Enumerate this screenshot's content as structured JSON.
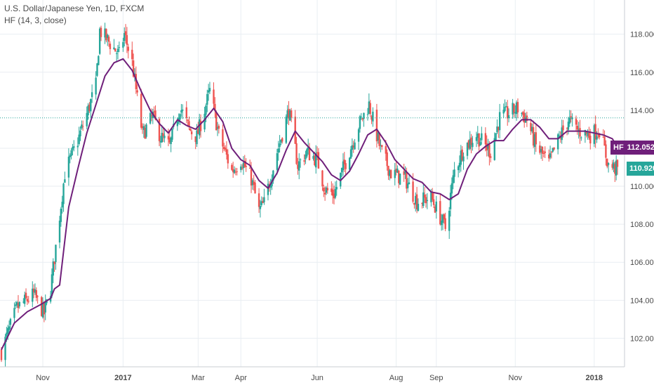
{
  "legend": {
    "symbol": "U.S. Dollar/Japanese Yen, 1D, FXCM",
    "indicator": "HF (14, 3, close)"
  },
  "colors": {
    "up": "#26a69a",
    "down": "#ef5350",
    "indicator": "#6f1f7a",
    "grid": "#e9eef2",
    "axis_text": "#4a4a4a",
    "price_line": "#26a69a",
    "price_tag_bg": "#26a69a",
    "hf_tag_bg": "#6f1f7a"
  },
  "price_tag": {
    "value": "110.920"
  },
  "hf_tag": {
    "label": "HF",
    "value": "112.052"
  },
  "chart_data": {
    "type": "candlestick",
    "title": "U.S. Dollar/Japanese Yen, 1D, FXCM",
    "xlabel": "",
    "ylabel": "",
    "ylim": [
      100.5,
      119.8
    ],
    "grid": true,
    "legend_placement": "top-left",
    "y_ticks": [
      "102.000",
      "104.000",
      "106.000",
      "108.000",
      "110.000",
      "112.000",
      "114.000",
      "116.000",
      "118.000"
    ],
    "x_ticks": [
      {
        "label": "Nov",
        "date": "2016-11-01",
        "bold": false
      },
      {
        "label": "2017",
        "date": "2017-01-02",
        "bold": true
      },
      {
        "label": "Mar",
        "date": "2017-03-01",
        "bold": false
      },
      {
        "label": "Apr",
        "date": "2017-04-03",
        "bold": false
      },
      {
        "label": "Jun",
        "date": "2017-06-01",
        "bold": false
      },
      {
        "label": "Aug",
        "date": "2017-08-01",
        "bold": false
      },
      {
        "label": "Sep",
        "date": "2017-09-01",
        "bold": false
      },
      {
        "label": "Nov",
        "date": "2017-11-01",
        "bold": false
      },
      {
        "label": "2018",
        "date": "2018-01-01",
        "bold": true
      }
    ],
    "date_range": [
      "2016-09-30",
      "2018-01-19"
    ],
    "close_path": [
      [
        "2016-09-30",
        101.3
      ],
      [
        "2016-10-12",
        103.6
      ],
      [
        "2016-10-25",
        104.3
      ],
      [
        "2016-11-02",
        103.3
      ],
      [
        "2016-11-07",
        104.6
      ],
      [
        "2016-11-11",
        106.8
      ],
      [
        "2016-11-18",
        110.7
      ],
      [
        "2016-11-28",
        112.4
      ],
      [
        "2016-12-05",
        113.8
      ],
      [
        "2016-12-12",
        115.3
      ],
      [
        "2016-12-15",
        118.2
      ],
      [
        "2016-12-22",
        117.6
      ],
      [
        "2016-12-30",
        116.9
      ],
      [
        "2017-01-03",
        118.0
      ],
      [
        "2017-01-09",
        116.5
      ],
      [
        "2017-01-17",
        112.7
      ],
      [
        "2017-01-25",
        113.7
      ],
      [
        "2017-01-31",
        112.6
      ],
      [
        "2017-02-07",
        112.1
      ],
      [
        "2017-02-15",
        114.2
      ],
      [
        "2017-02-22",
        113.0
      ],
      [
        "2017-02-28",
        112.6
      ],
      [
        "2017-03-10",
        115.0
      ],
      [
        "2017-03-17",
        112.7
      ],
      [
        "2017-03-27",
        110.8
      ],
      [
        "2017-04-03",
        111.4
      ],
      [
        "2017-04-11",
        110.4
      ],
      [
        "2017-04-17",
        108.7
      ],
      [
        "2017-04-21",
        109.1
      ],
      [
        "2017-05-01",
        111.8
      ],
      [
        "2017-05-10",
        114.0
      ],
      [
        "2017-05-17",
        111.1
      ],
      [
        "2017-05-24",
        111.8
      ],
      [
        "2017-06-01",
        111.4
      ],
      [
        "2017-06-07",
        109.8
      ],
      [
        "2017-06-14",
        109.6
      ],
      [
        "2017-06-23",
        111.3
      ],
      [
        "2017-07-03",
        113.2
      ],
      [
        "2017-07-11",
        114.3
      ],
      [
        "2017-07-20",
        111.9
      ],
      [
        "2017-07-28",
        110.7
      ],
      [
        "2017-08-08",
        110.4
      ],
      [
        "2017-08-17",
        109.2
      ],
      [
        "2017-08-28",
        109.4
      ],
      [
        "2017-09-08",
        107.8
      ],
      [
        "2017-09-15",
        110.8
      ],
      [
        "2017-09-22",
        112.0
      ],
      [
        "2017-10-02",
        112.7
      ],
      [
        "2017-10-13",
        111.8
      ],
      [
        "2017-10-20",
        113.6
      ],
      [
        "2017-11-03",
        114.1
      ],
      [
        "2017-11-10",
        113.5
      ],
      [
        "2017-11-17",
        112.1
      ],
      [
        "2017-11-27",
        111.2
      ],
      [
        "2017-12-04",
        112.4
      ],
      [
        "2017-12-12",
        113.5
      ],
      [
        "2017-12-20",
        112.9
      ],
      [
        "2017-12-29",
        112.7
      ],
      [
        "2018-01-05",
        113.0
      ],
      [
        "2018-01-12",
        111.1
      ],
      [
        "2018-01-19",
        110.9
      ]
    ],
    "series": [
      {
        "name": "HF (14, 3, close)",
        "type": "line",
        "points": [
          [
            "2016-09-30",
            101.4
          ],
          [
            "2016-10-10",
            102.8
          ],
          [
            "2016-10-20",
            103.4
          ],
          [
            "2016-10-31",
            103.8
          ],
          [
            "2016-11-07",
            104.1
          ],
          [
            "2016-11-10",
            104.6
          ],
          [
            "2016-11-14",
            104.8
          ],
          [
            "2016-11-21",
            108.9
          ],
          [
            "2016-11-28",
            110.9
          ],
          [
            "2016-12-05",
            112.8
          ],
          [
            "2016-12-12",
            114.3
          ],
          [
            "2016-12-19",
            115.8
          ],
          [
            "2016-12-26",
            116.5
          ],
          [
            "2017-01-02",
            116.7
          ],
          [
            "2017-01-09",
            116.1
          ],
          [
            "2017-01-16",
            115.0
          ],
          [
            "2017-01-23",
            114.0
          ],
          [
            "2017-01-30",
            113.3
          ],
          [
            "2017-02-06",
            112.8
          ],
          [
            "2017-02-13",
            113.5
          ],
          [
            "2017-02-20",
            113.2
          ],
          [
            "2017-02-27",
            113.0
          ],
          [
            "2017-03-06",
            113.5
          ],
          [
            "2017-03-13",
            114.1
          ],
          [
            "2017-03-20",
            113.4
          ],
          [
            "2017-03-27",
            112.0
          ],
          [
            "2017-04-03",
            111.4
          ],
          [
            "2017-04-10",
            111.1
          ],
          [
            "2017-04-17",
            110.3
          ],
          [
            "2017-04-24",
            109.9
          ],
          [
            "2017-05-01",
            110.7
          ],
          [
            "2017-05-08",
            111.9
          ],
          [
            "2017-05-15",
            112.9
          ],
          [
            "2017-05-22",
            112.3
          ],
          [
            "2017-05-29",
            111.8
          ],
          [
            "2017-06-05",
            111.3
          ],
          [
            "2017-06-12",
            110.6
          ],
          [
            "2017-06-19",
            110.3
          ],
          [
            "2017-06-26",
            110.8
          ],
          [
            "2017-07-03",
            111.7
          ],
          [
            "2017-07-10",
            112.7
          ],
          [
            "2017-07-17",
            113.0
          ],
          [
            "2017-07-24",
            112.3
          ],
          [
            "2017-07-31",
            111.4
          ],
          [
            "2017-08-07",
            110.9
          ],
          [
            "2017-08-14",
            110.4
          ],
          [
            "2017-08-21",
            110.2
          ],
          [
            "2017-08-28",
            109.7
          ],
          [
            "2017-09-04",
            109.6
          ],
          [
            "2017-09-11",
            109.3
          ],
          [
            "2017-09-18",
            109.6
          ],
          [
            "2017-09-25",
            110.9
          ],
          [
            "2017-10-02",
            111.7
          ],
          [
            "2017-10-09",
            112.1
          ],
          [
            "2017-10-16",
            112.4
          ],
          [
            "2017-10-23",
            112.4
          ],
          [
            "2017-10-30",
            113.0
          ],
          [
            "2017-11-06",
            113.5
          ],
          [
            "2017-11-13",
            113.5
          ],
          [
            "2017-11-20",
            113.1
          ],
          [
            "2017-11-27",
            112.5
          ],
          [
            "2017-12-04",
            112.5
          ],
          [
            "2017-12-11",
            112.9
          ],
          [
            "2017-12-18",
            112.9
          ],
          [
            "2017-12-25",
            112.9
          ],
          [
            "2018-01-01",
            112.8
          ],
          [
            "2018-01-08",
            112.7
          ],
          [
            "2018-01-15",
            112.5
          ],
          [
            "2018-01-19",
            112.05
          ]
        ]
      }
    ],
    "annotations": [
      {
        "type": "horizontal_line",
        "value": 113.6,
        "style": "dotted"
      },
      {
        "type": "last_price_tag",
        "value": 110.92
      },
      {
        "type": "indicator_tag",
        "label": "HF",
        "value": 112.052
      }
    ]
  }
}
